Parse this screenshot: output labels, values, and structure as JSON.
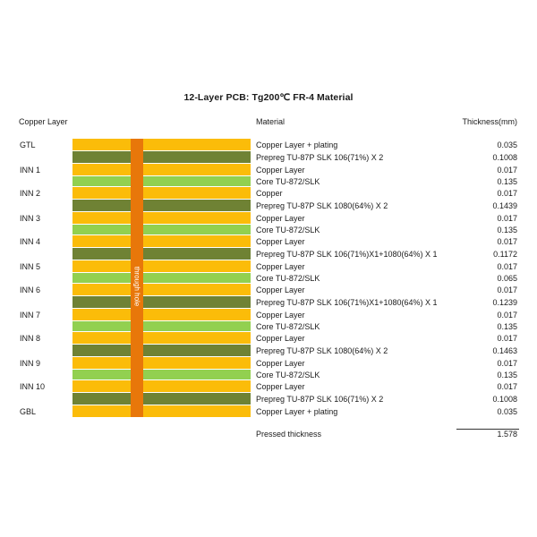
{
  "title": "12-Layer PCB: Tg200℃ FR-4 Material",
  "headers": {
    "copper_layer": "Copper Layer",
    "material": "Material",
    "thickness": "Thickness(mm)"
  },
  "via_label": "through hole",
  "colors": {
    "copper": "#fbbc09",
    "prepreg": "#6f8234",
    "core": "#92d050",
    "via": "#e8770a"
  },
  "rows": [
    {
      "kind": "copper",
      "layer": "GTL",
      "material": "Copper Layer + plating",
      "thickness": "0.035"
    },
    {
      "kind": "prepreg",
      "layer": "",
      "material": "Prepreg TU-87P SLK 106(71%) X 2",
      "thickness": "0.1008"
    },
    {
      "kind": "copper",
      "layer": "INN 1",
      "material": "Copper Layer",
      "thickness": "0.017"
    },
    {
      "kind": "core",
      "layer": "",
      "material": "Core TU-872/SLK",
      "thickness": "0.135"
    },
    {
      "kind": "copper",
      "layer": "INN 2",
      "material": "Copper",
      "thickness": "0.017"
    },
    {
      "kind": "prepreg",
      "layer": "",
      "material": "Prepreg TU-87P SLK 1080(64%) X 2",
      "thickness": "0.1439"
    },
    {
      "kind": "copper",
      "layer": "INN 3",
      "material": "Copper Layer",
      "thickness": "0.017"
    },
    {
      "kind": "core",
      "layer": "",
      "material": "Core TU-872/SLK",
      "thickness": "0.135"
    },
    {
      "kind": "copper",
      "layer": "INN 4",
      "material": "Copper Layer",
      "thickness": "0.017"
    },
    {
      "kind": "prepreg",
      "layer": "",
      "material": "Prepreg TU-87P SLK 106(71%)X1+1080(64%) X 1",
      "thickness": "0.1172"
    },
    {
      "kind": "copper",
      "layer": "INN 5",
      "material": "Copper Layer",
      "thickness": "0.017"
    },
    {
      "kind": "core",
      "layer": "",
      "material": "Core TU-872/SLK",
      "thickness": "0.065"
    },
    {
      "kind": "copper",
      "layer": "INN 6",
      "material": "Copper Layer",
      "thickness": "0.017"
    },
    {
      "kind": "prepreg",
      "layer": "",
      "material": "Prepreg TU-87P SLK 106(71%)X1+1080(64%) X 1",
      "thickness": "0.1239"
    },
    {
      "kind": "copper",
      "layer": "INN 7",
      "material": "Copper Layer",
      "thickness": "0.017"
    },
    {
      "kind": "core",
      "layer": "",
      "material": "Core TU-872/SLK",
      "thickness": "0.135"
    },
    {
      "kind": "copper",
      "layer": "INN 8",
      "material": "Copper Layer",
      "thickness": "0.017"
    },
    {
      "kind": "prepreg",
      "layer": "",
      "material": "Prepreg TU-87P SLK 1080(64%) X 2",
      "thickness": "0.1463"
    },
    {
      "kind": "copper",
      "layer": "INN 9",
      "material": "Copper Layer",
      "thickness": "0.017"
    },
    {
      "kind": "core",
      "layer": "",
      "material": "Core TU-872/SLK",
      "thickness": "0.135"
    },
    {
      "kind": "copper",
      "layer": "INN 10",
      "material": "Copper Layer",
      "thickness": "0.017"
    },
    {
      "kind": "prepreg",
      "layer": "",
      "material": "Prepreg TU-87P SLK 106(71%) X 2",
      "thickness": "0.1008"
    },
    {
      "kind": "copper",
      "layer": "GBL",
      "material": "Copper Layer + plating",
      "thickness": "0.035"
    }
  ],
  "total": {
    "label": "Pressed thickness",
    "value": "1.578"
  }
}
